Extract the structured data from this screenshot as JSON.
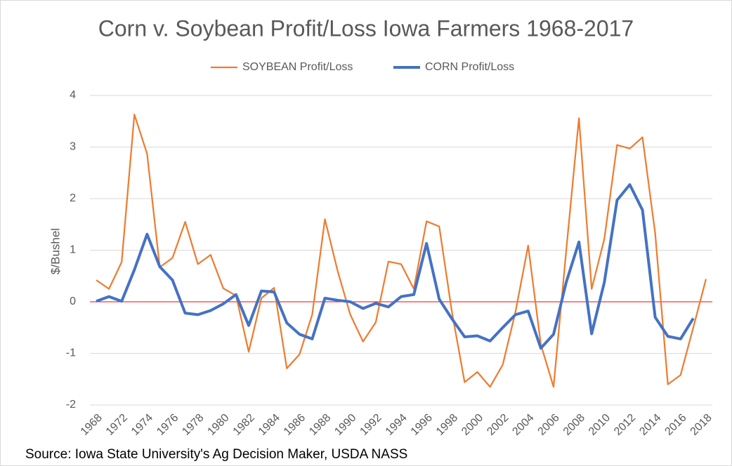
{
  "chart_data": {
    "type": "line",
    "title": "Corn v. Soybean Profit/Loss Iowa Farmers 1968-2017",
    "y_label": "$/Bushel",
    "source": "Source: Iowa State University's Ag Decision Maker, USDA NASS",
    "categories": [
      "1968",
      null,
      "1972",
      null,
      "1974",
      null,
      "1976",
      null,
      "1978",
      null,
      "1980",
      null,
      "1982",
      null,
      "1984",
      null,
      "1986",
      null,
      "1988",
      null,
      "1990",
      null,
      "1992",
      null,
      "1994",
      null,
      "1996",
      null,
      "1998",
      null,
      "2000",
      null,
      "2002",
      null,
      "2004",
      null,
      "2006",
      null,
      "2008",
      null,
      "2010",
      null,
      "2012",
      null,
      "2014",
      null,
      "2016",
      null,
      "2018"
    ],
    "series": [
      {
        "name": "SOYBEAN Profit/Loss",
        "color": "#ed7d31",
        "width": 2.25,
        "values": [
          0.42,
          0.25,
          0.77,
          3.63,
          2.87,
          0.67,
          0.85,
          1.55,
          0.73,
          0.91,
          0.26,
          0.12,
          -0.97,
          0.07,
          0.27,
          -1.29,
          -1.02,
          -0.25,
          1.6,
          0.6,
          -0.25,
          -0.77,
          -0.4,
          0.78,
          0.73,
          0.25,
          1.56,
          1.46,
          -0.2,
          -1.56,
          -1.36,
          -1.65,
          -1.22,
          -0.2,
          1.09,
          -0.83,
          -1.65,
          1.0,
          3.56,
          0.25,
          1.22,
          3.04,
          2.97,
          3.19,
          1.33,
          -1.6,
          -1.42,
          -0.5,
          0.44
        ]
      },
      {
        "name": "CORN Profit/Loss",
        "color": "#4472c4",
        "width": 4,
        "values": [
          0.01,
          0.1,
          0.01,
          0.62,
          1.31,
          0.68,
          0.42,
          -0.22,
          -0.25,
          -0.17,
          -0.04,
          0.14,
          -0.46,
          0.21,
          0.19,
          -0.41,
          -0.63,
          -0.72,
          0.07,
          0.03,
          0.0,
          -0.13,
          -0.03,
          -0.1,
          0.1,
          0.14,
          1.13,
          0.05,
          -0.33,
          -0.68,
          -0.66,
          -0.76,
          -0.5,
          -0.25,
          -0.18,
          -0.9,
          -0.63,
          0.38,
          1.16,
          -0.62,
          0.38,
          1.97,
          2.27,
          1.78,
          -0.3,
          -0.67,
          -0.72,
          -0.32,
          null
        ]
      }
    ],
    "ylim": [
      -2,
      4
    ],
    "yticks": [
      -2,
      -1,
      0,
      1,
      2,
      3,
      4
    ],
    "grid": true,
    "hline": {
      "value": 0,
      "color": "#ff0000"
    },
    "legend": "top"
  }
}
